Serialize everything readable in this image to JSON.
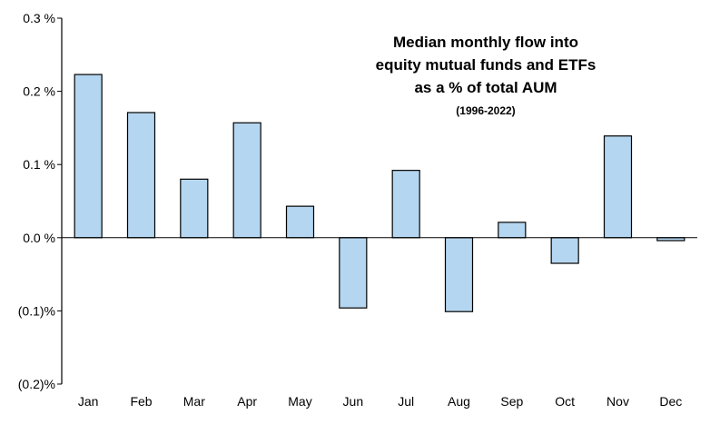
{
  "chart_data": {
    "type": "bar",
    "title_lines": [
      "Median monthly flow into",
      "equity mutual funds and ETFs",
      "as a % of total AUM"
    ],
    "subtitle": "(1996-2022)",
    "categories": [
      "Jan",
      "Feb",
      "Mar",
      "Apr",
      "May",
      "Jun",
      "Jul",
      "Aug",
      "Sep",
      "Oct",
      "Nov",
      "Dec"
    ],
    "values": [
      0.223,
      0.171,
      0.08,
      0.157,
      0.043,
      -0.096,
      0.092,
      -0.101,
      0.021,
      -0.035,
      0.139,
      -0.004
    ],
    "ylim": [
      -0.2,
      0.3
    ],
    "yticks": [
      0.3,
      0.2,
      0.1,
      0.0,
      -0.1,
      -0.2
    ],
    "ytick_labels": [
      "0.3 %",
      "0.2 %",
      "0.1 %",
      "0.0 %",
      "(0.1)%",
      "(0.2)%"
    ],
    "xlabel": "",
    "ylabel": "",
    "grid": false,
    "bar_color": "#b5d6f0",
    "bar_edge_color": "#000000"
  }
}
